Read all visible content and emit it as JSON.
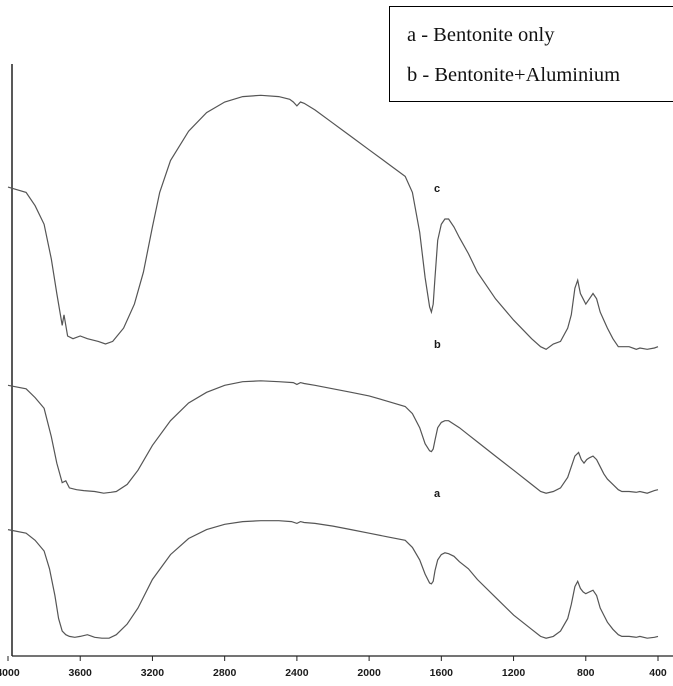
{
  "chart_data": {
    "type": "line",
    "title": "",
    "xlabel": "",
    "ylabel": "",
    "x_axis": {
      "reversed": true,
      "ticks": [
        4000,
        3600,
        3200,
        2800,
        2400,
        2000,
        1600,
        1200,
        800,
        400
      ],
      "tick_labels": [
        "4000",
        "3600",
        "3200",
        "2800",
        "2400",
        "2000",
        "1600",
        "1200",
        "800",
        "400"
      ]
    },
    "legend": {
      "placement": "top-right",
      "entries": [
        "a - Bentonite only",
        "b - Bentonite+Aluminium"
      ]
    },
    "series": [
      {
        "name": "c",
        "color": "#555555",
        "points": [
          [
            4000,
            0.62
          ],
          [
            3900,
            0.6
          ],
          [
            3850,
            0.55
          ],
          [
            3800,
            0.48
          ],
          [
            3760,
            0.35
          ],
          [
            3730,
            0.22
          ],
          [
            3700,
            0.1
          ],
          [
            3690,
            0.14
          ],
          [
            3670,
            0.06
          ],
          [
            3640,
            0.05
          ],
          [
            3600,
            0.06
          ],
          [
            3560,
            0.05
          ],
          [
            3500,
            0.04
          ],
          [
            3460,
            0.03
          ],
          [
            3420,
            0.04
          ],
          [
            3360,
            0.09
          ],
          [
            3300,
            0.18
          ],
          [
            3250,
            0.3
          ],
          [
            3200,
            0.47
          ],
          [
            3160,
            0.6
          ],
          [
            3100,
            0.72
          ],
          [
            3000,
            0.83
          ],
          [
            2900,
            0.9
          ],
          [
            2800,
            0.94
          ],
          [
            2700,
            0.96
          ],
          [
            2600,
            0.965
          ],
          [
            2500,
            0.96
          ],
          [
            2440,
            0.95
          ],
          [
            2420,
            0.94
          ],
          [
            2400,
            0.925
          ],
          [
            2380,
            0.94
          ],
          [
            2360,
            0.935
          ],
          [
            2300,
            0.91
          ],
          [
            2200,
            0.86
          ],
          [
            2100,
            0.81
          ],
          [
            2000,
            0.76
          ],
          [
            1900,
            0.71
          ],
          [
            1800,
            0.66
          ],
          [
            1760,
            0.6
          ],
          [
            1720,
            0.45
          ],
          [
            1690,
            0.28
          ],
          [
            1665,
            0.17
          ],
          [
            1655,
            0.15
          ],
          [
            1645,
            0.18
          ],
          [
            1635,
            0.28
          ],
          [
            1620,
            0.42
          ],
          [
            1600,
            0.48
          ],
          [
            1580,
            0.5
          ],
          [
            1560,
            0.5
          ],
          [
            1530,
            0.47
          ],
          [
            1500,
            0.43
          ],
          [
            1450,
            0.37
          ],
          [
            1400,
            0.3
          ],
          [
            1300,
            0.2
          ],
          [
            1200,
            0.12
          ],
          [
            1100,
            0.05
          ],
          [
            1050,
            0.02
          ],
          [
            1020,
            0.01
          ],
          [
            980,
            0.03
          ],
          [
            940,
            0.04
          ],
          [
            900,
            0.09
          ],
          [
            880,
            0.14
          ],
          [
            860,
            0.24
          ],
          [
            845,
            0.27
          ],
          [
            830,
            0.22
          ],
          [
            815,
            0.2
          ],
          [
            800,
            0.18
          ],
          [
            780,
            0.2
          ],
          [
            760,
            0.22
          ],
          [
            740,
            0.2
          ],
          [
            720,
            0.15
          ],
          [
            700,
            0.12
          ],
          [
            680,
            0.09
          ],
          [
            650,
            0.05
          ],
          [
            620,
            0.02
          ],
          [
            600,
            0.02
          ],
          [
            560,
            0.02
          ],
          [
            520,
            0.01
          ],
          [
            500,
            0.015
          ],
          [
            460,
            0.01
          ],
          [
            420,
            0.015
          ],
          [
            400,
            0.02
          ]
        ]
      },
      {
        "name": "b",
        "color": "#555555",
        "points": [
          [
            4000,
            0.62
          ],
          [
            3900,
            0.6
          ],
          [
            3850,
            0.55
          ],
          [
            3800,
            0.49
          ],
          [
            3760,
            0.33
          ],
          [
            3730,
            0.18
          ],
          [
            3700,
            0.07
          ],
          [
            3680,
            0.08
          ],
          [
            3660,
            0.04
          ],
          [
            3620,
            0.03
          ],
          [
            3580,
            0.025
          ],
          [
            3520,
            0.02
          ],
          [
            3470,
            0.01
          ],
          [
            3430,
            0.015
          ],
          [
            3400,
            0.02
          ],
          [
            3340,
            0.06
          ],
          [
            3280,
            0.14
          ],
          [
            3200,
            0.28
          ],
          [
            3100,
            0.42
          ],
          [
            3000,
            0.52
          ],
          [
            2900,
            0.58
          ],
          [
            2800,
            0.62
          ],
          [
            2700,
            0.64
          ],
          [
            2600,
            0.645
          ],
          [
            2500,
            0.64
          ],
          [
            2420,
            0.635
          ],
          [
            2400,
            0.625
          ],
          [
            2380,
            0.635
          ],
          [
            2360,
            0.63
          ],
          [
            2300,
            0.62
          ],
          [
            2200,
            0.6
          ],
          [
            2100,
            0.58
          ],
          [
            2000,
            0.56
          ],
          [
            1900,
            0.53
          ],
          [
            1800,
            0.5
          ],
          [
            1760,
            0.46
          ],
          [
            1720,
            0.38
          ],
          [
            1690,
            0.29
          ],
          [
            1665,
            0.25
          ],
          [
            1655,
            0.245
          ],
          [
            1645,
            0.26
          ],
          [
            1635,
            0.31
          ],
          [
            1620,
            0.38
          ],
          [
            1600,
            0.41
          ],
          [
            1580,
            0.42
          ],
          [
            1560,
            0.42
          ],
          [
            1530,
            0.4
          ],
          [
            1500,
            0.38
          ],
          [
            1450,
            0.34
          ],
          [
            1400,
            0.3
          ],
          [
            1300,
            0.22
          ],
          [
            1200,
            0.14
          ],
          [
            1100,
            0.06
          ],
          [
            1050,
            0.02
          ],
          [
            1020,
            0.01
          ],
          [
            980,
            0.02
          ],
          [
            940,
            0.04
          ],
          [
            900,
            0.1
          ],
          [
            880,
            0.16
          ],
          [
            860,
            0.22
          ],
          [
            840,
            0.24
          ],
          [
            825,
            0.2
          ],
          [
            810,
            0.18
          ],
          [
            795,
            0.2
          ],
          [
            780,
            0.21
          ],
          [
            760,
            0.22
          ],
          [
            740,
            0.2
          ],
          [
            720,
            0.16
          ],
          [
            700,
            0.12
          ],
          [
            680,
            0.09
          ],
          [
            650,
            0.06
          ],
          [
            620,
            0.03
          ],
          [
            600,
            0.02
          ],
          [
            560,
            0.02
          ],
          [
            520,
            0.015
          ],
          [
            500,
            0.02
          ],
          [
            460,
            0.01
          ],
          [
            420,
            0.025
          ],
          [
            400,
            0.03
          ]
        ]
      },
      {
        "name": "a",
        "color": "#555555",
        "points": [
          [
            4000,
            0.62
          ],
          [
            3900,
            0.6
          ],
          [
            3850,
            0.56
          ],
          [
            3800,
            0.5
          ],
          [
            3770,
            0.4
          ],
          [
            3740,
            0.25
          ],
          [
            3720,
            0.12
          ],
          [
            3700,
            0.05
          ],
          [
            3680,
            0.03
          ],
          [
            3660,
            0.02
          ],
          [
            3630,
            0.015
          ],
          [
            3600,
            0.02
          ],
          [
            3560,
            0.03
          ],
          [
            3520,
            0.015
          ],
          [
            3480,
            0.01
          ],
          [
            3440,
            0.01
          ],
          [
            3400,
            0.03
          ],
          [
            3340,
            0.09
          ],
          [
            3280,
            0.18
          ],
          [
            3200,
            0.34
          ],
          [
            3100,
            0.48
          ],
          [
            3000,
            0.57
          ],
          [
            2900,
            0.62
          ],
          [
            2800,
            0.65
          ],
          [
            2700,
            0.665
          ],
          [
            2600,
            0.67
          ],
          [
            2500,
            0.67
          ],
          [
            2430,
            0.665
          ],
          [
            2400,
            0.655
          ],
          [
            2380,
            0.665
          ],
          [
            2360,
            0.66
          ],
          [
            2300,
            0.655
          ],
          [
            2200,
            0.64
          ],
          [
            2100,
            0.62
          ],
          [
            2000,
            0.6
          ],
          [
            1900,
            0.58
          ],
          [
            1800,
            0.56
          ],
          [
            1760,
            0.52
          ],
          [
            1720,
            0.45
          ],
          [
            1690,
            0.37
          ],
          [
            1665,
            0.32
          ],
          [
            1655,
            0.315
          ],
          [
            1645,
            0.33
          ],
          [
            1635,
            0.39
          ],
          [
            1620,
            0.45
          ],
          [
            1600,
            0.48
          ],
          [
            1580,
            0.49
          ],
          [
            1560,
            0.485
          ],
          [
            1530,
            0.47
          ],
          [
            1500,
            0.44
          ],
          [
            1450,
            0.4
          ],
          [
            1400,
            0.34
          ],
          [
            1300,
            0.24
          ],
          [
            1200,
            0.14
          ],
          [
            1100,
            0.06
          ],
          [
            1050,
            0.02
          ],
          [
            1020,
            0.01
          ],
          [
            980,
            0.02
          ],
          [
            940,
            0.05
          ],
          [
            900,
            0.12
          ],
          [
            880,
            0.2
          ],
          [
            860,
            0.3
          ],
          [
            845,
            0.33
          ],
          [
            830,
            0.29
          ],
          [
            815,
            0.27
          ],
          [
            800,
            0.26
          ],
          [
            780,
            0.27
          ],
          [
            760,
            0.28
          ],
          [
            740,
            0.25
          ],
          [
            720,
            0.18
          ],
          [
            700,
            0.14
          ],
          [
            680,
            0.1
          ],
          [
            650,
            0.06
          ],
          [
            620,
            0.03
          ],
          [
            600,
            0.02
          ],
          [
            560,
            0.02
          ],
          [
            520,
            0.015
          ],
          [
            500,
            0.02
          ],
          [
            460,
            0.01
          ],
          [
            420,
            0.015
          ],
          [
            400,
            0.02
          ]
        ]
      }
    ],
    "annotations": [
      {
        "text": "c",
        "x": 1580,
        "series": "c"
      },
      {
        "text": "b",
        "x": 1580,
        "series": "b"
      },
      {
        "text": "a",
        "x": 1580,
        "series": "a"
      }
    ]
  }
}
